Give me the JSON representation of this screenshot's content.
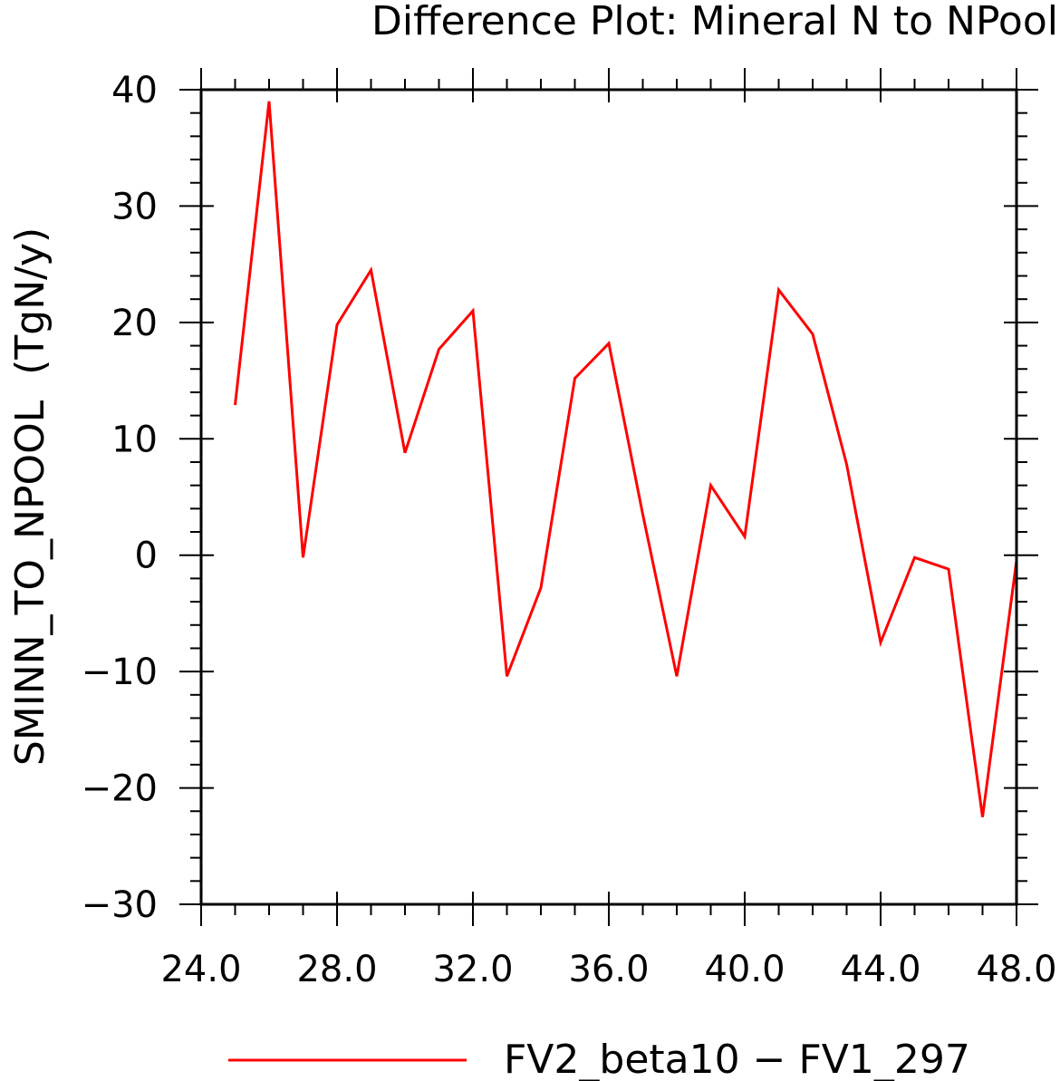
{
  "chart_data": {
    "type": "line",
    "title": "Difference Plot: Mineral N to NPool",
    "xlabel": "",
    "ylabel": "SMINN_TO_NPOOL  (TgN/y)",
    "xlim": [
      24,
      48
    ],
    "ylim": [
      -30,
      40
    ],
    "x_ticks": [
      24,
      28,
      32,
      36,
      40,
      44,
      48
    ],
    "x_tick_labels": [
      "24.0",
      "28.0",
      "32.0",
      "36.0",
      "40.0",
      "44.0",
      "48.0"
    ],
    "y_ticks": [
      -30,
      -20,
      -10,
      0,
      10,
      20,
      30,
      40
    ],
    "y_tick_labels": [
      "−30",
      "−20",
      "−10",
      "0",
      "10",
      "20",
      "30",
      "40"
    ],
    "grid": false,
    "legend_position": "bottom",
    "series": [
      {
        "name": "FV2_beta10 − FV1_297",
        "color": "#ff0000",
        "x": [
          25,
          26,
          27,
          28,
          29,
          30,
          31,
          32,
          33,
          34,
          35,
          36,
          37,
          38,
          39,
          40,
          41,
          42,
          43,
          44,
          45,
          46,
          47,
          48
        ],
        "y": [
          12.9,
          39.0,
          -0.2,
          19.8,
          24.5,
          8.8,
          17.7,
          21.0,
          -10.4,
          -2.8,
          15.2,
          18.2,
          3.5,
          -10.4,
          6.0,
          1.6,
          22.8,
          19.0,
          7.8,
          -7.5,
          -0.2,
          -1.2,
          -22.5,
          -0.5
        ]
      }
    ]
  }
}
